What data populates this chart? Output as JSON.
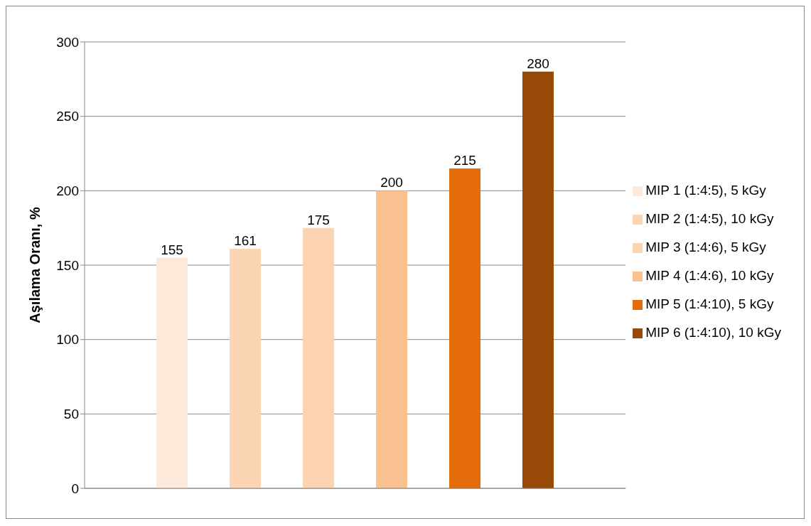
{
  "chart_data": {
    "type": "bar",
    "ylabel": "Aşılama Oranı, %",
    "categories": [
      null
    ],
    "series": [
      {
        "name": "MIP 1 (1:4:5), 5 kGy",
        "color": "#fde9d9",
        "values": [
          155
        ]
      },
      {
        "name": "MIP 2 (1:4:5), 10 kGy",
        "color": "#fcd5b5",
        "values": [
          161
        ]
      },
      {
        "name": "MIP 3 (1:4:6), 5 kGy",
        "color": "#fbd3b0",
        "values": [
          175
        ]
      },
      {
        "name": "MIP 4 (1:4:6), 10 kGy",
        "color": "#fac090",
        "values": [
          200
        ]
      },
      {
        "name": "MIP 5 (1:4:10), 5 kGy",
        "color": "#e46c0a",
        "values": [
          215
        ]
      },
      {
        "name": "MIP 6 (1:4:10), 10 kGy",
        "color": "#984807",
        "values": [
          280
        ]
      }
    ],
    "ylim": [
      0,
      300
    ],
    "yticks": [
      0,
      50,
      100,
      150,
      200,
      250,
      300
    ],
    "grid": "y",
    "legend": "right",
    "data_labels": true
  }
}
